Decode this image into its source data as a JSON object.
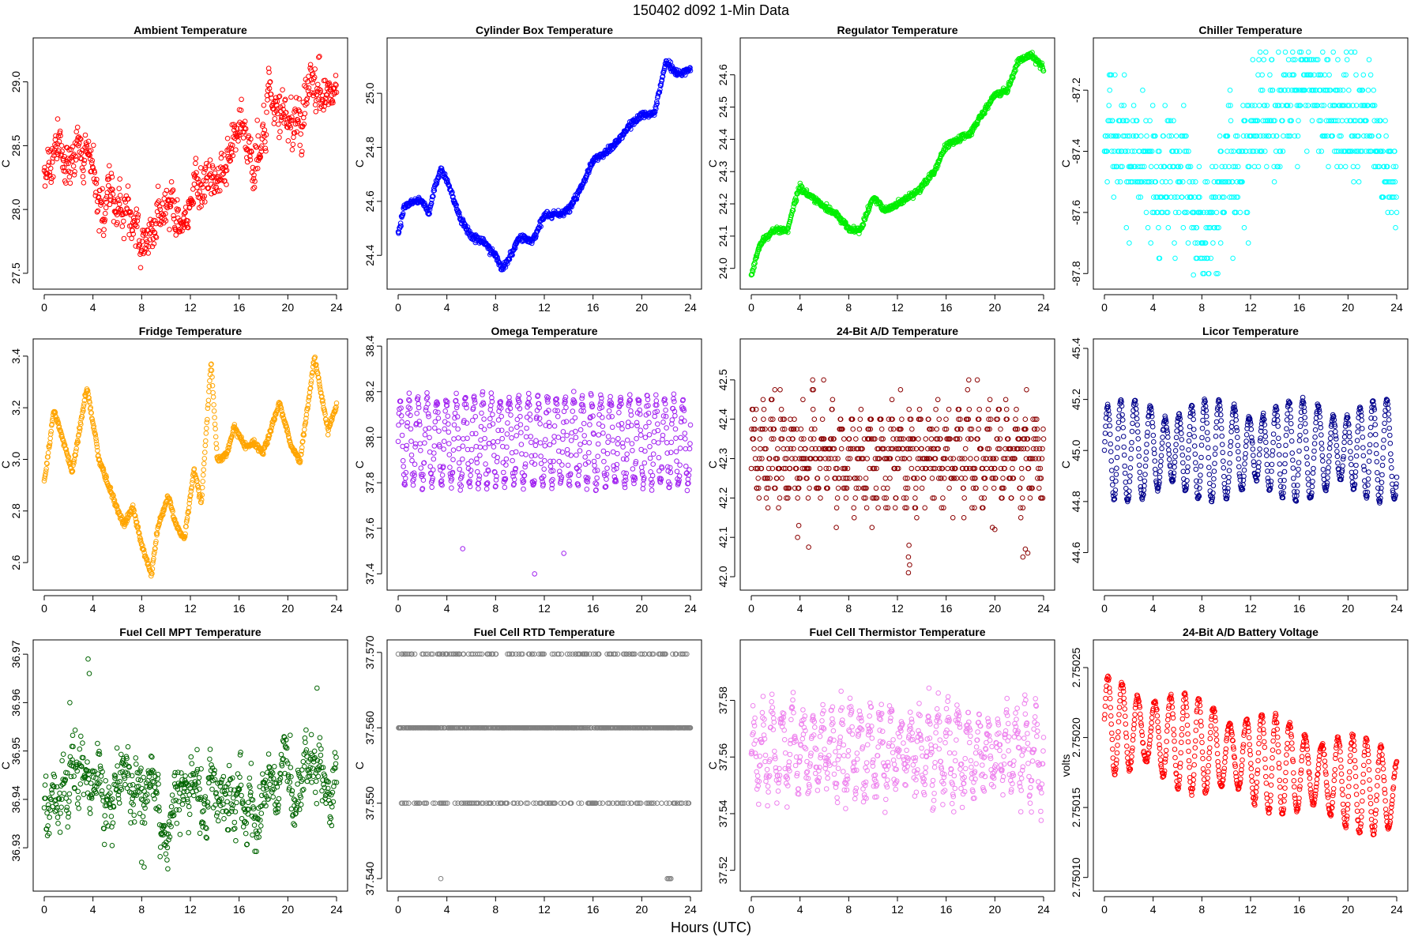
{
  "figure": {
    "title": "150402    d092    1-Min Data",
    "xlabel": "Hours (UTC)"
  },
  "chart_data": [
    {
      "type": "scatter",
      "title": "Ambient Temperature",
      "ylabel": "C",
      "color": "#ff0000",
      "xlim": [
        0,
        24
      ],
      "ylim": [
        27.45,
        29.27
      ],
      "xticks": [
        "0",
        "4",
        "8",
        "12",
        "16",
        "20",
        "24"
      ],
      "yticks": [
        {
          "value": 27.5,
          "label": "27.5"
        },
        {
          "value": 28.0,
          "label": "28.0"
        },
        {
          "value": 28.5,
          "label": "28.5"
        },
        {
          "value": 29.0,
          "label": "29.0"
        }
      ],
      "x": [
        0,
        1,
        2,
        3,
        4,
        5,
        6,
        7,
        8,
        9,
        10,
        11,
        12,
        13,
        14,
        15,
        16,
        17,
        18,
        19,
        20,
        21,
        22,
        23,
        24
      ],
      "y": [
        28.3,
        28.45,
        28.2,
        28.5,
        28.2,
        28.0,
        28.0,
        27.95,
        27.75,
        27.8,
        28.15,
        28.0,
        28.1,
        28.25,
        28.3,
        28.4,
        28.6,
        28.55,
        28.6,
        28.85,
        28.7,
        28.6,
        29.05,
        28.7,
        28.8
      ],
      "noise": 0.12,
      "mode": "jitter"
    },
    {
      "type": "scatter",
      "title": "Cylinder Box Temperature",
      "ylabel": "C",
      "color": "#0000ff",
      "xlim": [
        0,
        24
      ],
      "ylim": [
        24.31,
        25.17
      ],
      "xticks": [
        "0",
        "4",
        "8",
        "12",
        "16",
        "20",
        "24"
      ],
      "yticks": [
        {
          "value": 24.4,
          "label": "24.4"
        },
        {
          "value": 24.6,
          "label": "24.6"
        },
        {
          "value": 24.8,
          "label": "24.8"
        },
        {
          "value": 25.0,
          "label": "25.0"
        }
      ],
      "x": [
        0,
        0.5,
        1,
        2,
        2.5,
        3,
        3.5,
        4,
        5,
        6,
        7,
        8,
        8.5,
        9,
        10,
        11,
        12,
        13,
        14,
        15,
        16,
        17,
        18,
        19,
        20,
        21,
        22,
        23,
        24
      ],
      "y": [
        24.48,
        24.58,
        24.6,
        24.6,
        24.55,
        24.65,
        24.72,
        24.68,
        24.55,
        24.47,
        24.45,
        24.4,
        24.35,
        24.38,
        24.47,
        24.45,
        24.55,
        24.55,
        24.57,
        24.65,
        24.75,
        24.78,
        24.82,
        24.88,
        24.92,
        24.92,
        25.12,
        25.07,
        25.09
      ],
      "noise": 0.006,
      "mode": "line"
    },
    {
      "type": "scatter",
      "title": "Regulator Temperature",
      "ylabel": "C",
      "color": "#00ee00",
      "xlim": [
        0,
        24
      ],
      "ylim": [
        23.965,
        24.685
      ],
      "xticks": [
        "0",
        "4",
        "8",
        "12",
        "16",
        "20",
        "24"
      ],
      "yticks": [
        {
          "value": 24.0,
          "label": "24.0"
        },
        {
          "value": 24.1,
          "label": "24.1"
        },
        {
          "value": 24.2,
          "label": "24.2"
        },
        {
          "value": 24.3,
          "label": "24.3"
        },
        {
          "value": 24.4,
          "label": "24.4"
        },
        {
          "value": 24.5,
          "label": "24.5"
        },
        {
          "value": 24.6,
          "label": "24.6"
        }
      ],
      "x": [
        0,
        0.5,
        1,
        2,
        3,
        3.5,
        4,
        5,
        6,
        7,
        8,
        9,
        10,
        11,
        12,
        13,
        14,
        15,
        16,
        17,
        18,
        19,
        20,
        21,
        22,
        23,
        24
      ],
      "y": [
        23.98,
        24.05,
        24.09,
        24.12,
        24.12,
        24.2,
        24.25,
        24.22,
        24.19,
        24.17,
        24.12,
        24.12,
        24.22,
        24.18,
        24.2,
        24.22,
        24.25,
        24.3,
        24.38,
        24.4,
        24.42,
        24.48,
        24.54,
        24.55,
        24.65,
        24.66,
        24.62
      ],
      "noise": 0.005,
      "mode": "line"
    },
    {
      "type": "scatter",
      "title": "Chiller Temperature",
      "ylabel": "C",
      "color": "#00ffff",
      "xlim": [
        0,
        24
      ],
      "ylim": [
        -87.82,
        -87.06
      ],
      "xticks": [
        "0",
        "4",
        "8",
        "12",
        "16",
        "20",
        "24"
      ],
      "yticks": [
        {
          "value": -87.8,
          "label": "-87.8"
        },
        {
          "value": -87.6,
          "label": "-87.6"
        },
        {
          "value": -87.4,
          "label": "-87.4"
        },
        {
          "value": -87.2,
          "label": "-87.2"
        }
      ],
      "x": [
        0,
        2,
        4,
        6,
        7.5,
        8,
        8.5,
        9,
        10,
        11,
        12,
        13,
        14,
        16,
        18,
        20,
        22,
        23,
        24
      ],
      "y": [
        -87.32,
        -87.42,
        -87.45,
        -87.5,
        -87.55,
        -87.72,
        -87.72,
        -87.6,
        -87.45,
        -87.45,
        -87.4,
        -87.32,
        -87.28,
        -87.2,
        -87.25,
        -87.28,
        -87.3,
        -87.45,
        -87.55
      ],
      "noise": 0.1,
      "mode": "quant",
      "quant": 0.05
    },
    {
      "type": "scatter",
      "title": "Fridge Temperature",
      "ylabel": "C",
      "color": "#ffa500",
      "xlim": [
        0,
        24
      ],
      "ylim": [
        2.53,
        3.43
      ],
      "xticks": [
        "0",
        "4",
        "8",
        "12",
        "16",
        "20",
        "24"
      ],
      "yticks": [
        {
          "value": 2.6,
          "label": "2.6"
        },
        {
          "value": 2.8,
          "label": "2.8"
        },
        {
          "value": 3.0,
          "label": "3.0"
        },
        {
          "value": 3.2,
          "label": "3.2"
        },
        {
          "value": 3.4,
          "label": "3.4"
        }
      ],
      "x": [
        0,
        0.8,
        2,
        2.3,
        3.5,
        4.5,
        5.5,
        6.5,
        7.3,
        8,
        8.8,
        9.3,
        10.2,
        10.8,
        11.5,
        12.3,
        12.9,
        13.7,
        14.2,
        15,
        15.6,
        16.5,
        17.2,
        18,
        19.3,
        20.3,
        21,
        22.2,
        23.3,
        24
      ],
      "y": [
        2.91,
        3.19,
        3.0,
        2.95,
        3.28,
        3.0,
        2.87,
        2.75,
        2.81,
        2.67,
        2.55,
        2.73,
        2.86,
        2.75,
        2.69,
        2.96,
        2.83,
        3.38,
        3.0,
        3.02,
        3.13,
        3.05,
        3.06,
        3.03,
        3.22,
        3.05,
        2.99,
        3.4,
        3.11,
        3.21
      ],
      "noise": 0.006,
      "mode": "line"
    },
    {
      "type": "scatter",
      "title": "Omega Temperature",
      "ylabel": "C",
      "color": "#a020f0",
      "xlim": [
        0,
        24
      ],
      "ylim": [
        37.37,
        38.39
      ],
      "xticks": [
        "0",
        "4",
        "8",
        "12",
        "16",
        "20",
        "24"
      ],
      "yticks": [
        {
          "value": 37.4,
          "label": "37.4"
        },
        {
          "value": 37.6,
          "label": "37.6"
        },
        {
          "value": 37.8,
          "label": "37.8"
        },
        {
          "value": 38.0,
          "label": "38.0"
        },
        {
          "value": 38.2,
          "label": "38.2"
        },
        {
          "value": 38.4,
          "label": "38.4"
        }
      ],
      "x": [
        0,
        24
      ],
      "y": [
        37.98,
        37.98
      ],
      "noise": 0.015,
      "mode": "wave",
      "amp": 0.19,
      "period": 0.75,
      "outliers": [
        [
          5.3,
          37.51
        ],
        [
          11.2,
          37.4
        ],
        [
          13.6,
          37.49
        ]
      ]
    },
    {
      "type": "scatter",
      "title": "24-Bit A/D Temperature",
      "ylabel": "C",
      "color": "#8b0000",
      "xlim": [
        0,
        24
      ],
      "ylim": [
        41.99,
        42.58
      ],
      "xticks": [
        "0",
        "4",
        "8",
        "12",
        "16",
        "20",
        "24"
      ],
      "yticks": [
        {
          "value": 42.0,
          "label": "42.0"
        },
        {
          "value": 42.1,
          "label": "42.1"
        },
        {
          "value": 42.2,
          "label": "42.2"
        },
        {
          "value": 42.3,
          "label": "42.3"
        },
        {
          "value": 42.4,
          "label": "42.4"
        },
        {
          "value": 42.5,
          "label": "42.5"
        }
      ],
      "x": [
        0,
        24
      ],
      "y": [
        42.31,
        42.31
      ],
      "noise": 0.05,
      "mode": "wave",
      "amp": 0.07,
      "period": 0.8,
      "quant": 0.025,
      "outliers": [
        [
          3.8,
          42.1
        ],
        [
          3.9,
          42.13
        ],
        [
          12.9,
          42.01
        ],
        [
          12.9,
          42.05
        ],
        [
          12.95,
          42.08
        ],
        [
          13.0,
          42.03
        ],
        [
          20.0,
          42.12
        ],
        [
          22.5,
          42.07
        ],
        [
          22.7,
          42.06
        ],
        [
          22.3,
          42.05
        ]
      ]
    },
    {
      "type": "scatter",
      "title": "Licor Temperature",
      "ylabel": "C",
      "color": "#00008b",
      "xlim": [
        0,
        24
      ],
      "ylim": [
        44.49,
        45.4
      ],
      "xticks": [
        "0",
        "4",
        "8",
        "12",
        "16",
        "20",
        "24"
      ],
      "yticks": [
        {
          "value": 44.6,
          "label": "44.6"
        },
        {
          "value": 44.8,
          "label": "44.8"
        },
        {
          "value": 45.0,
          "label": "45.0"
        },
        {
          "value": 45.2,
          "label": "45.2"
        },
        {
          "value": 45.4,
          "label": "45.4"
        }
      ],
      "x": [
        0,
        24
      ],
      "y": [
        45.0,
        45.0
      ],
      "noise": 0.004,
      "mode": "wave",
      "amp": 0.2,
      "period": 1.15,
      "ampVar": true
    },
    {
      "type": "scatter",
      "title": "Fuel Cell MPT Temperature",
      "ylabel": "C",
      "color": "#006400",
      "xlim": [
        0,
        24
      ],
      "ylim": [
        36.923,
        36.971
      ],
      "xticks": [
        "0",
        "4",
        "8",
        "12",
        "16",
        "20",
        "24"
      ],
      "yticks": [
        {
          "value": 36.93,
          "label": "36.93"
        },
        {
          "value": 36.94,
          "label": "36.94"
        },
        {
          "value": 36.95,
          "label": "36.95"
        },
        {
          "value": 36.96,
          "label": "36.96"
        },
        {
          "value": 36.97,
          "label": "36.97"
        }
      ],
      "x": [
        0,
        24
      ],
      "y": [
        36.941,
        36.941
      ],
      "noise": 0.0045,
      "mode": "jitter",
      "outliers": [
        [
          3.6,
          36.969
        ],
        [
          3.7,
          36.966
        ],
        [
          22.4,
          36.963
        ],
        [
          2.1,
          36.96
        ],
        [
          8.2,
          36.926
        ],
        [
          8.0,
          36.927
        ]
      ]
    },
    {
      "type": "scatter",
      "title": "Fuel Cell RTD Temperature",
      "ylabel": "C",
      "color": "#808080",
      "xlim": [
        0,
        24
      ],
      "ylim": [
        37.5396,
        37.5704
      ],
      "xticks": [
        "0",
        "4",
        "8",
        "12",
        "16",
        "20",
        "24"
      ],
      "yticks": [
        {
          "value": 37.54,
          "label": "37.540"
        },
        {
          "value": 37.55,
          "label": "37.550"
        },
        {
          "value": 37.56,
          "label": "37.560"
        },
        {
          "value": 37.57,
          "label": "37.570"
        }
      ],
      "x": [
        0,
        24
      ],
      "y": [
        37.56,
        37.56
      ],
      "noise": 0.0,
      "mode": "levels",
      "levels": [
        37.55,
        37.56,
        37.57
      ],
      "outliers": [
        [
          3.5,
          37.54
        ],
        [
          22.1,
          37.54
        ],
        [
          22.2,
          37.54
        ],
        [
          22.3,
          37.54
        ],
        [
          22.4,
          37.54
        ]
      ]
    },
    {
      "type": "scatter",
      "title": "Fuel Cell Thermistor Temperature",
      "ylabel": "C",
      "color": "#ee82ee",
      "xlim": [
        0,
        24
      ],
      "ylim": [
        37.516,
        37.598
      ],
      "xticks": [
        "0",
        "4",
        "8",
        "12",
        "16",
        "20",
        "24"
      ],
      "yticks": [
        {
          "value": 37.52,
          "label": "37.52"
        },
        {
          "value": 37.54,
          "label": "37.54"
        },
        {
          "value": 37.56,
          "label": "37.56"
        },
        {
          "value": 37.58,
          "label": "37.58"
        }
      ],
      "x": [
        0,
        24
      ],
      "y": [
        37.562,
        37.562
      ],
      "noise": 0.004,
      "mode": "wave",
      "amp": 0.015,
      "period": 0.8,
      "ampVar": true
    },
    {
      "type": "scatter",
      "title": "24-Bit A/D Battery Voltage",
      "ylabel": "volts",
      "color": "#ff0000",
      "xlim": [
        0,
        24
      ],
      "ylim": [
        2.750097,
        2.750263
      ],
      "xticks": [
        "0",
        "4",
        "8",
        "12",
        "16",
        "20",
        "24"
      ],
      "yticks": [
        {
          "value": 2.7501,
          "label": "2.75010"
        },
        {
          "value": 2.75015,
          "label": "2.75015"
        },
        {
          "value": 2.7502,
          "label": "2.75020"
        },
        {
          "value": 2.75025,
          "label": "2.75025"
        }
      ],
      "x": [
        0,
        24
      ],
      "y": [
        2.75021,
        2.75016
      ],
      "noise": 1e-06,
      "mode": "wave",
      "amp": 3.5e-05,
      "period": 1.25,
      "ampVar": true
    }
  ]
}
